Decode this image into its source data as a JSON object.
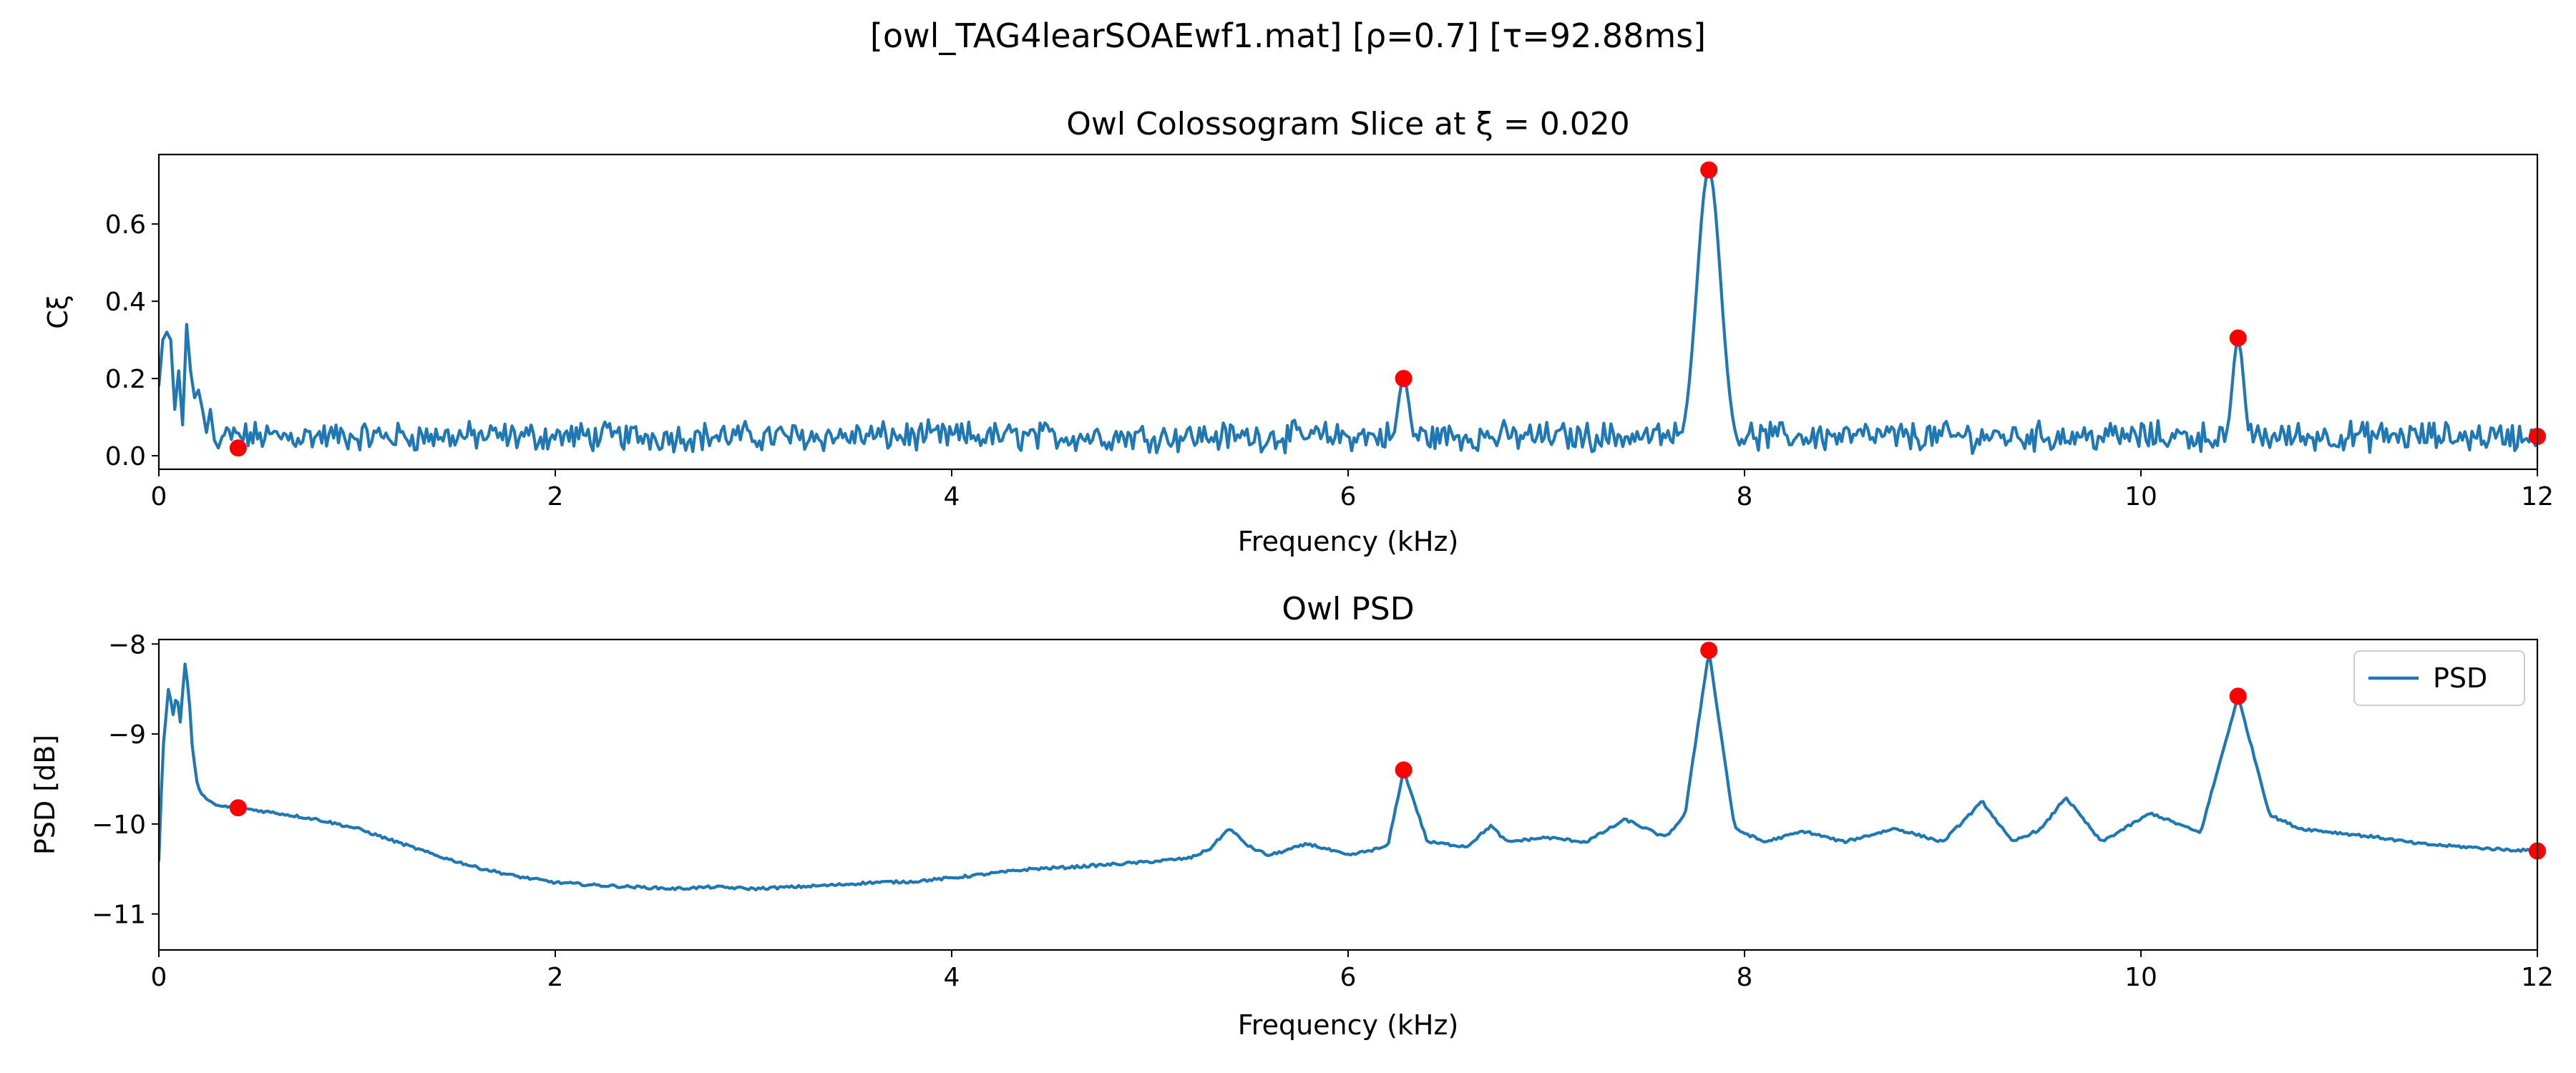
{
  "figure": {
    "suptitle": "[owl_TAG4learSOAEwf1.mat]   [ρ=0.7]   [τ=92.88ms]"
  },
  "chart_data": [
    {
      "type": "line",
      "title": "Owl Colossogram Slice at ξ = 0.020",
      "xlabel": "Frequency (kHz)",
      "ylabel": "Cξ",
      "xlim": [
        0,
        12
      ],
      "ylim": [
        -0.035,
        0.78
      ],
      "xticks": [
        0,
        2,
        4,
        6,
        8,
        10,
        12
      ],
      "xtick_labels": [
        "0",
        "2",
        "4",
        "6",
        "8",
        "10",
        "12"
      ],
      "yticks": [
        0.0,
        0.2,
        0.4,
        0.6
      ],
      "ytick_labels": [
        "0.0",
        "0.2",
        "0.4",
        "0.6"
      ],
      "grid": false,
      "noise_level": 0.05,
      "series": [
        {
          "color": "#1f77b4",
          "x": [
            0,
            0.02,
            0.04,
            0.06,
            0.08,
            0.1,
            0.12,
            0.14,
            0.16,
            0.18,
            0.2,
            0.22,
            0.24,
            0.26,
            0.28,
            0.3,
            0.32
          ],
          "y": [
            0.18,
            0.3,
            0.32,
            0.3,
            0.12,
            0.22,
            0.08,
            0.34,
            0.22,
            0.15,
            0.17,
            0.12,
            0.06,
            0.12,
            0.04,
            0.02,
            0.05
          ]
        }
      ],
      "peaks": [
        {
          "x": 6.28,
          "y": 0.2,
          "width": 0.03
        },
        {
          "x": 7.82,
          "y": 0.74,
          "width": 0.06
        },
        {
          "x": 10.49,
          "y": 0.3,
          "width": 0.03
        }
      ],
      "markers": {
        "color": "#ff0000",
        "x": [
          0.4,
          6.28,
          7.82,
          10.49,
          12.0
        ],
        "y": [
          0.02,
          0.2,
          0.74,
          0.305,
          0.05
        ]
      }
    },
    {
      "type": "line",
      "title": "Owl PSD",
      "xlabel": "Frequency (kHz)",
      "ylabel": "PSD [dB]",
      "xlim": [
        0,
        12
      ],
      "ylim": [
        -11.4,
        -7.95
      ],
      "xticks": [
        0,
        2,
        4,
        6,
        8,
        10,
        12
      ],
      "xtick_labels": [
        "0",
        "2",
        "4",
        "6",
        "8",
        "10",
        "12"
      ],
      "yticks": [
        -11,
        -10,
        -9,
        -8
      ],
      "ytick_labels": [
        "−11",
        "−10",
        "−9",
        "−8"
      ],
      "grid": false,
      "legend": {
        "location": "upper right",
        "entries": [
          "PSD"
        ]
      },
      "series": [
        {
          "name": "PSD",
          "color": "#1f77b4",
          "x": [
            0,
            0.02,
            0.05,
            0.07,
            0.09,
            0.11,
            0.13,
            0.15,
            0.17,
            0.19,
            0.21,
            0.25,
            0.3,
            0.4,
            0.6,
            0.8,
            1.0,
            1.2,
            1.4,
            1.6,
            1.8,
            2.0,
            2.2,
            2.4,
            2.6,
            2.8,
            3.0,
            3.2,
            3.4,
            3.6,
            3.8,
            4.0,
            4.2,
            4.4,
            4.6,
            4.8,
            5.0,
            5.2,
            5.3,
            5.4,
            5.5,
            5.6,
            5.8,
            6.0,
            6.2,
            6.28,
            6.4,
            6.6,
            6.72,
            6.8,
            7.0,
            7.2,
            7.4,
            7.6,
            7.7,
            7.82,
            7.95,
            8.1,
            8.3,
            8.5,
            8.76,
            9.0,
            9.2,
            9.35,
            9.5,
            9.62,
            9.8,
            10.05,
            10.3,
            10.49,
            10.65,
            10.8,
            11.0,
            11.2,
            11.4,
            11.6,
            11.8,
            12.0
          ],
          "y": [
            -10.4,
            -9.2,
            -8.45,
            -8.8,
            -8.55,
            -8.9,
            -8.2,
            -8.5,
            -9.2,
            -9.5,
            -9.65,
            -9.75,
            -9.8,
            -9.82,
            -9.88,
            -9.95,
            -10.05,
            -10.2,
            -10.35,
            -10.48,
            -10.58,
            -10.65,
            -10.68,
            -10.7,
            -10.72,
            -10.7,
            -10.72,
            -10.7,
            -10.68,
            -10.65,
            -10.64,
            -10.6,
            -10.55,
            -10.5,
            -10.48,
            -10.45,
            -10.42,
            -10.38,
            -10.28,
            -10.05,
            -10.25,
            -10.35,
            -10.22,
            -10.35,
            -10.25,
            -9.4,
            -10.2,
            -10.25,
            -10.02,
            -10.2,
            -10.15,
            -10.2,
            -9.95,
            -10.15,
            -9.9,
            -8.07,
            -10.05,
            -10.2,
            -10.08,
            -10.2,
            -10.05,
            -10.2,
            -9.75,
            -10.2,
            -10.05,
            -9.7,
            -10.2,
            -9.88,
            -10.1,
            -8.58,
            -9.9,
            -10.05,
            -10.1,
            -10.15,
            -10.22,
            -10.25,
            -10.28,
            -10.3
          ]
        }
      ],
      "markers": {
        "color": "#ff0000",
        "x": [
          0.4,
          6.28,
          7.82,
          10.49,
          12.0
        ],
        "y": [
          -9.82,
          -9.4,
          -8.07,
          -8.58,
          -10.3
        ]
      }
    }
  ]
}
